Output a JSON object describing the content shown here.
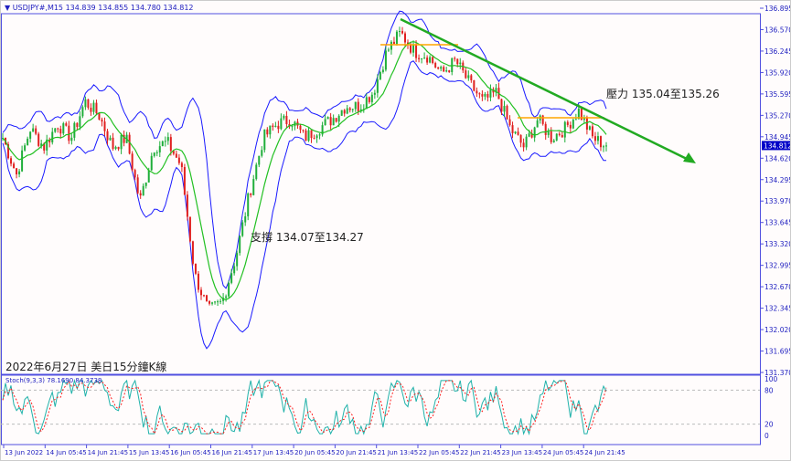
{
  "header": {
    "symbol_icon": "triangle-down-icon",
    "text": "USDJPY#,M15  134.839 134.855 134.780 134.812"
  },
  "annotations": {
    "resistance": "壓力 135.04至135.26",
    "support": "支撐 134.07至134.27",
    "caption": "2022年6月27日 美日15分鐘K線"
  },
  "stochastic": {
    "label": "Stoch(9,3,3) 78.1690 84.3738",
    "levels": [
      "100",
      "80",
      "20",
      "0"
    ]
  },
  "price_axis": {
    "ticks": [
      "136.895",
      "136.570",
      "136.245",
      "135.920",
      "135.595",
      "135.270",
      "134.945",
      "134.620",
      "134.295",
      "133.970",
      "133.645",
      "133.320",
      "132.995",
      "132.670",
      "132.345",
      "132.020",
      "131.695",
      "131.370"
    ],
    "current": "134.812"
  },
  "time_axis": {
    "ticks": [
      "13 Jun 2022",
      "14 Jun 05:45",
      "14 Jun 21:45",
      "15 Jun 13:45",
      "16 Jun 05:45",
      "16 Jun 21:45",
      "17 Jun 13:45",
      "20 Jun 05:45",
      "20 Jun 21:45",
      "21 Jun 13:45",
      "22 Jun 05:45",
      "22 Jun 21:45",
      "23 Jun 13:45",
      "24 Jun 05:45",
      "24 Jun 21:45"
    ]
  },
  "chart_data": {
    "type": "candlestick",
    "ylim": [
      131.37,
      136.895
    ],
    "approx_close_path": [
      134.93,
      134.37,
      135.07,
      134.79,
      135.14,
      134.93,
      135.48,
      135.28,
      134.79,
      134.93,
      133.96,
      134.79,
      134.86,
      134.51,
      132.85,
      132.3,
      132.44,
      133.13,
      134.1,
      134.93,
      135.14,
      135.21,
      134.93,
      135.07,
      135.21,
      135.41,
      135.41,
      135.62,
      136.24,
      136.52,
      136.24,
      136.17,
      135.9,
      136.1,
      135.76,
      135.48,
      135.62,
      135.07,
      134.79,
      135.21,
      134.93,
      135.07,
      135.34,
      134.93,
      134.81
    ],
    "last": {
      "open": 134.839,
      "high": 134.855,
      "low": 134.78,
      "close": 134.812
    },
    "colors": {
      "up": "#1fae3a",
      "down": "#e02020",
      "bands": "#1a1aff",
      "ma": "#22c022",
      "trend": "#22aa22",
      "level": "#ffa500",
      "stoch_main": "#20b2aa",
      "stoch_signal": "#ff2020"
    }
  }
}
